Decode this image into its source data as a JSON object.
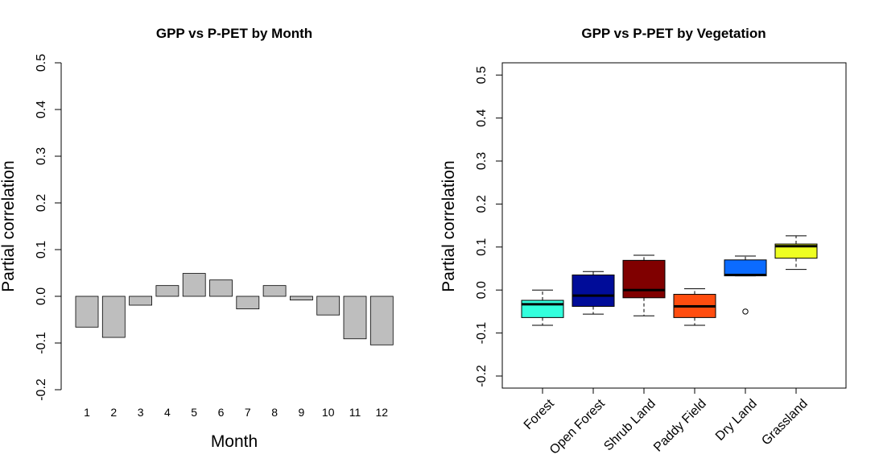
{
  "chart_data": [
    {
      "type": "bar",
      "title": "GPP vs P-PET by Month",
      "xlabel": "Month",
      "ylabel": "Partial correlation",
      "ylim": [
        -0.2,
        0.5
      ],
      "yticks": [
        "-0.2",
        "-0.1",
        "0.0",
        "0.1",
        "0.2",
        "0.3",
        "0.4",
        "0.5"
      ],
      "categories": [
        "1",
        "2",
        "3",
        "4",
        "5",
        "6",
        "7",
        "8",
        "9",
        "10",
        "11",
        "12"
      ],
      "values": [
        -0.066,
        -0.088,
        -0.019,
        0.023,
        0.049,
        0.035,
        -0.027,
        0.023,
        -0.008,
        -0.04,
        -0.091,
        -0.104
      ],
      "bar_color": "#bebebe",
      "grid": false
    },
    {
      "type": "boxplot",
      "title": "GPP vs P-PET by Vegetation",
      "xlabel": "",
      "ylabel": "Partial correlation",
      "ylim": [
        -0.2,
        0.5
      ],
      "yticks": [
        "-0.2",
        "-0.1",
        "0.0",
        "0.1",
        "0.2",
        "0.3",
        "0.4",
        "0.5"
      ],
      "categories": [
        "Forest",
        "Open Forest",
        "Shrub Land",
        "Paddy Field",
        "Dry Land",
        "Grassland"
      ],
      "boxes": [
        {
          "min": -0.082,
          "q1": -0.064,
          "median": -0.033,
          "q3": -0.024,
          "max": 0.0,
          "outliers": [],
          "color": "#33ffdd"
        },
        {
          "min": -0.056,
          "q1": -0.038,
          "median": -0.013,
          "q3": 0.035,
          "max": 0.043,
          "outliers": [],
          "color": "#000c99"
        },
        {
          "min": -0.06,
          "q1": -0.018,
          "median": 0.0,
          "q3": 0.069,
          "max": 0.081,
          "outliers": [],
          "color": "#800000"
        },
        {
          "min": -0.082,
          "q1": -0.064,
          "median": -0.038,
          "q3": -0.01,
          "max": 0.003,
          "outliers": [],
          "color": "#ff4d0f"
        },
        {
          "min": 0.033,
          "q1": 0.033,
          "median": 0.035,
          "q3": 0.07,
          "max": 0.079,
          "outliers": [
            -0.05
          ],
          "color": "#0b6bff"
        },
        {
          "min": 0.048,
          "q1": 0.074,
          "median": 0.102,
          "q3": 0.107,
          "max": 0.126,
          "outliers": [],
          "color": "#eeff22"
        }
      ],
      "grid": false
    }
  ]
}
